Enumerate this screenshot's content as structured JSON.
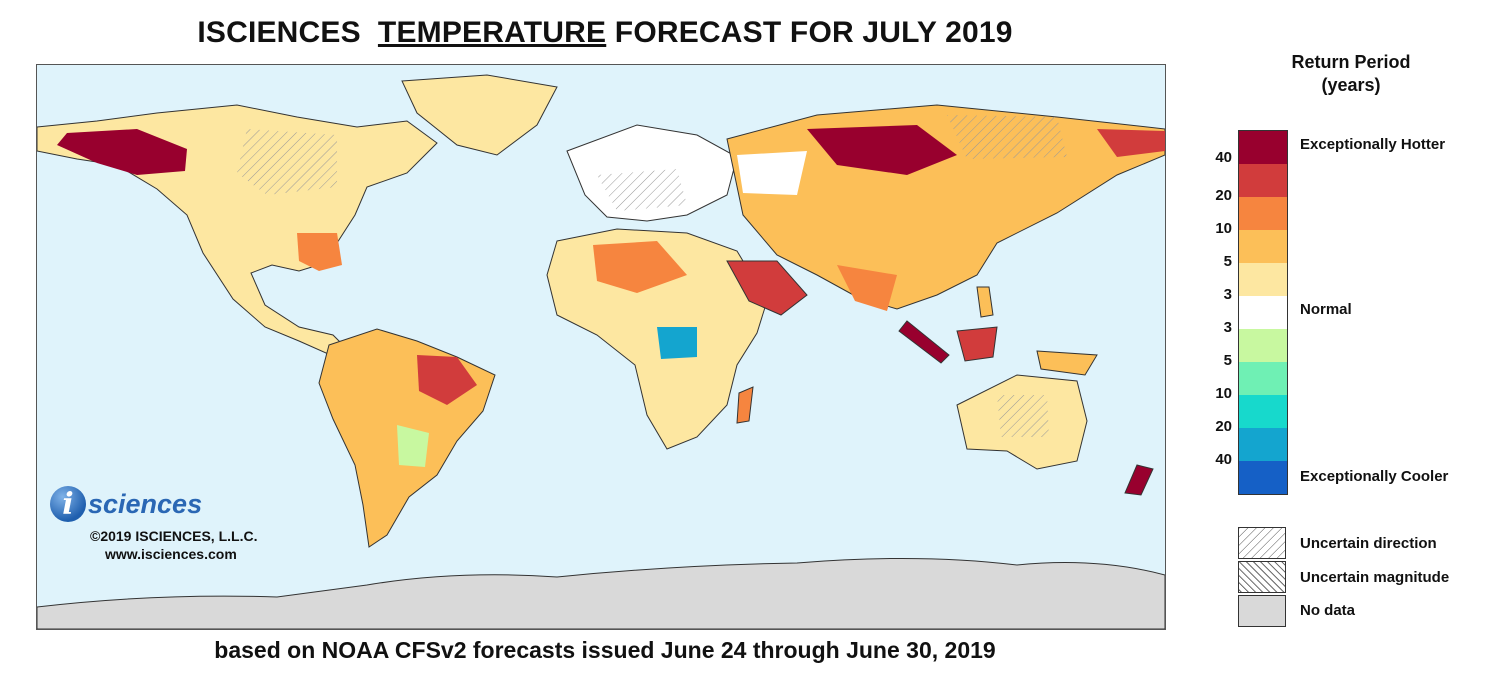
{
  "header": {
    "title_prefix": "ISCIENCES",
    "title_underlined": "TEMPERATURE",
    "title_suffix": "FORECAST FOR JULY 2019"
  },
  "footer": {
    "caption": "based on NOAA CFSv2 forecasts issued June 24 through June 30, 2019"
  },
  "logo": {
    "glyph": "i",
    "wordmark": "sciences",
    "copyright": "©2019 ISCIENCES, L.L.C.",
    "website": "www.isciences.com"
  },
  "legend": {
    "title_line1": "Return Period",
    "title_line2": "(years)",
    "colors": [
      "#98002e",
      "#d13c3c",
      "#f6853f",
      "#fcbf58",
      "#fde7a1",
      "#ffffff",
      "#c8f8a0",
      "#6ff0b4",
      "#17d9cc",
      "#14a5cf",
      "#1560c6"
    ],
    "ticks": [
      "40",
      "20",
      "10",
      "5",
      "3",
      "3",
      "5",
      "10",
      "20",
      "40"
    ],
    "hot_label": "Exceptionally Hotter",
    "normal_label": "Normal",
    "cool_label": "Exceptionally Cooler",
    "uncertain_direction": "Uncertain direction",
    "uncertain_magnitude": "Uncertain magnitude",
    "no_data": "No data",
    "ocean_color": "#dff3fb",
    "nodata_color": "#d9d9d9"
  }
}
